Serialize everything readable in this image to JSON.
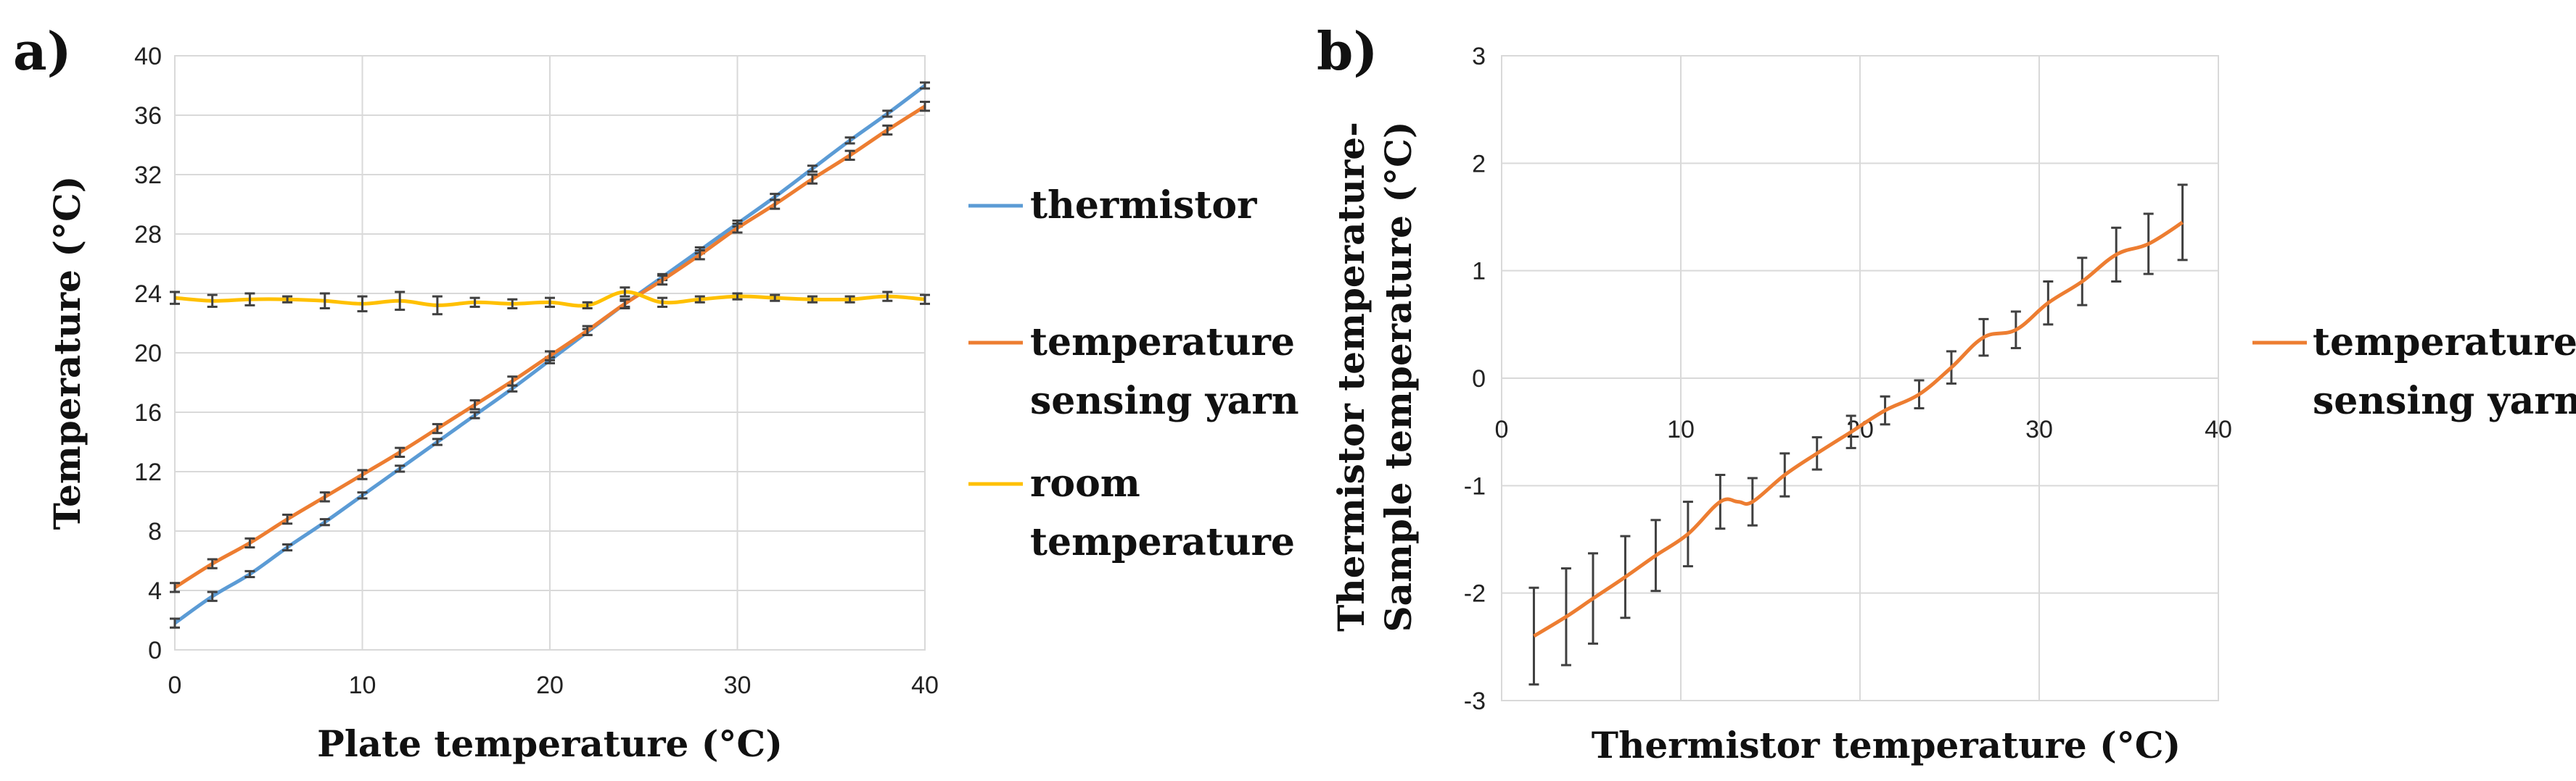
{
  "chart_data": [
    {
      "panel_label": "a)",
      "type": "line",
      "xlabel": "Plate temperature (°C)",
      "ylabel": "Temperature (°C)",
      "xlim": [
        0,
        40
      ],
      "ylim": [
        0,
        40
      ],
      "xticks": [
        0,
        10,
        20,
        30,
        40
      ],
      "yticks": [
        0,
        4,
        8,
        12,
        16,
        20,
        24,
        28,
        32,
        36,
        40
      ],
      "grid": true,
      "legend_position": "right",
      "x": [
        0,
        2,
        4,
        6,
        8,
        10,
        12,
        14,
        16,
        18,
        20,
        22,
        24,
        26,
        28,
        30,
        32,
        34,
        36,
        38,
        40
      ],
      "series": [
        {
          "name": "thermistor",
          "color": "#5b9bd5",
          "values": [
            1.8,
            3.6,
            5.1,
            6.9,
            8.6,
            10.4,
            12.2,
            14.0,
            15.8,
            17.6,
            19.5,
            21.4,
            23.3,
            25.1,
            26.9,
            28.7,
            30.5,
            32.4,
            34.3,
            36.1,
            38.0
          ],
          "errors": [
            0.3,
            0.3,
            0.2,
            0.2,
            0.2,
            0.2,
            0.2,
            0.2,
            0.2,
            0.2,
            0.2,
            0.2,
            0.2,
            0.2,
            0.2,
            0.2,
            0.2,
            0.2,
            0.2,
            0.2,
            0.2
          ]
        },
        {
          "name": "temperature sensing yarn",
          "color": "#ed7d31",
          "values": [
            4.2,
            5.8,
            7.2,
            8.8,
            10.3,
            11.8,
            13.3,
            14.9,
            16.5,
            18.1,
            19.8,
            21.5,
            23.3,
            24.9,
            26.6,
            28.4,
            30.0,
            31.7,
            33.3,
            35.0,
            36.6
          ],
          "errors": [
            0.3,
            0.3,
            0.3,
            0.3,
            0.3,
            0.3,
            0.3,
            0.3,
            0.3,
            0.3,
            0.3,
            0.3,
            0.3,
            0.3,
            0.3,
            0.3,
            0.3,
            0.3,
            0.3,
            0.3,
            0.3
          ]
        },
        {
          "name": "room temperature",
          "color": "#ffc000",
          "values": [
            23.7,
            23.5,
            23.6,
            23.6,
            23.5,
            23.3,
            23.5,
            23.2,
            23.4,
            23.3,
            23.4,
            23.2,
            24.1,
            23.4,
            23.6,
            23.8,
            23.7,
            23.6,
            23.6,
            23.8,
            23.6
          ],
          "errors": [
            0.4,
            0.4,
            0.4,
            0.2,
            0.5,
            0.5,
            0.6,
            0.6,
            0.3,
            0.3,
            0.3,
            0.2,
            0.3,
            0.3,
            0.2,
            0.2,
            0.2,
            0.2,
            0.2,
            0.3,
            0.3
          ]
        }
      ]
    },
    {
      "panel_label": "b)",
      "type": "line",
      "xlabel": "Thermistor temperature (°C)",
      "ylabel_lines": [
        "Thermistor temperature-",
        "Sample temperature (°C)"
      ],
      "xlim": [
        0,
        40
      ],
      "ylim": [
        -3,
        3
      ],
      "xticks": [
        0,
        10,
        20,
        30,
        40
      ],
      "yticks": [
        -3,
        -2,
        -1,
        0,
        1,
        2,
        3
      ],
      "grid": true,
      "legend_position": "right",
      "series": [
        {
          "name": "temperature sensing yarn",
          "color": "#ed7d31",
          "x": [
            1.8,
            3.6,
            5.1,
            6.9,
            8.6,
            10.4,
            12.2,
            13.2,
            14.0,
            15.8,
            17.6,
            19.5,
            21.4,
            23.3,
            25.1,
            26.9,
            28.7,
            30.5,
            32.4,
            34.3,
            36.1,
            38.0
          ],
          "values": [
            -2.4,
            -2.22,
            -2.05,
            -1.85,
            -1.65,
            -1.45,
            -1.15,
            -1.15,
            -1.15,
            -0.9,
            -0.7,
            -0.5,
            -0.3,
            -0.15,
            0.1,
            0.38,
            0.45,
            0.7,
            0.9,
            1.15,
            1.25,
            1.45
          ],
          "errors": [
            0.45,
            0.45,
            0.42,
            0.38,
            0.33,
            0.3,
            0.25,
            0.0,
            0.22,
            0.2,
            0.15,
            0.15,
            0.13,
            0.13,
            0.15,
            0.17,
            0.17,
            0.2,
            0.22,
            0.25,
            0.28,
            0.35
          ]
        }
      ]
    }
  ]
}
